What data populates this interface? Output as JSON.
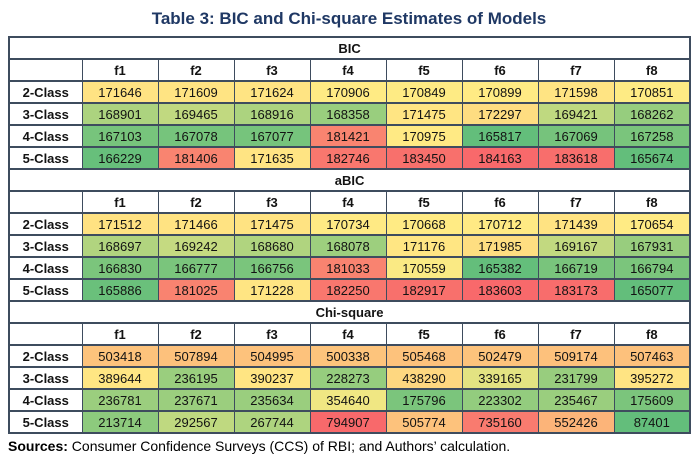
{
  "chart_data": {
    "type": "heatmap",
    "title": "Table 3: BIC and Chi-square Estimates of Models",
    "columns": [
      "f1",
      "f2",
      "f3",
      "f4",
      "f5",
      "f6",
      "f7",
      "f8"
    ],
    "sections": [
      {
        "name": "BIC",
        "rows": [
          {
            "label": "2-Class",
            "values": [
              171646,
              171609,
              171624,
              170906,
              170849,
              170899,
              171598,
              170851
            ]
          },
          {
            "label": "3-Class",
            "values": [
              168901,
              169465,
              168916,
              168358,
              171475,
              172297,
              169421,
              168262
            ]
          },
          {
            "label": "4-Class",
            "values": [
              167103,
              167078,
              167077,
              181421,
              170975,
              165817,
              167069,
              167258
            ]
          },
          {
            "label": "5-Class",
            "values": [
              166229,
              181406,
              171635,
              182746,
              183450,
              184163,
              183618,
              165674
            ]
          }
        ]
      },
      {
        "name": "aBIC",
        "rows": [
          {
            "label": "2-Class",
            "values": [
              171512,
              171466,
              171475,
              170734,
              170668,
              170712,
              171439,
              170654
            ]
          },
          {
            "label": "3-Class",
            "values": [
              168697,
              169242,
              168680,
              168078,
              171176,
              171985,
              169167,
              167931
            ]
          },
          {
            "label": "4-Class",
            "values": [
              166830,
              166777,
              166756,
              181033,
              170559,
              165382,
              166719,
              166794
            ]
          },
          {
            "label": "5-Class",
            "values": [
              165886,
              181025,
              171228,
              182250,
              182917,
              183603,
              183173,
              165077
            ]
          }
        ]
      },
      {
        "name": "Chi-square",
        "rows": [
          {
            "label": "2-Class",
            "values": [
              503418,
              507894,
              504995,
              500338,
              505468,
              502479,
              509174,
              507463
            ]
          },
          {
            "label": "3-Class",
            "values": [
              389644,
              236195,
              390237,
              228273,
              438290,
              339165,
              231799,
              395272
            ]
          },
          {
            "label": "4-Class",
            "values": [
              236781,
              237671,
              235634,
              354640,
              175796,
              223302,
              235467,
              175609
            ]
          },
          {
            "label": "5-Class",
            "values": [
              213714,
              292567,
              267744,
              794907,
              505774,
              735160,
              552426,
              87401
            ]
          }
        ]
      }
    ],
    "color_scale": {
      "min_color": "#63BE7B",
      "mid_color": "#FFEB84",
      "max_color": "#F8696B",
      "midpoint": "median per section",
      "legend": "green = lowest value, yellow = median, red = highest value"
    }
  },
  "colors": {
    "title_text": "#1F3864",
    "section_header_text": "#1F3864",
    "table_border": "#3E4C5E"
  },
  "footer": {
    "label": "Sources:",
    "text": " Consumer Confidence Surveys (CCS) of RBI; and Authors’ calculation."
  }
}
